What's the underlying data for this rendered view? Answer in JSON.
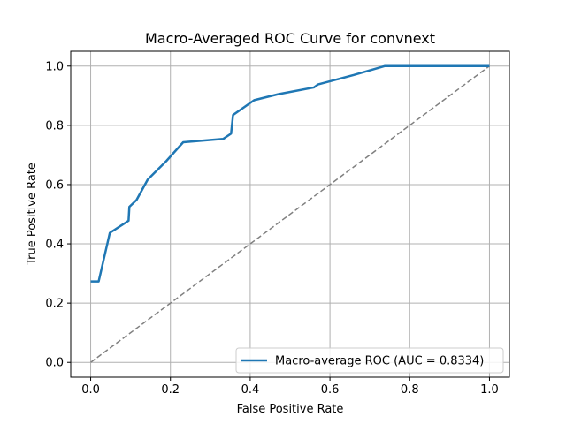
{
  "chart_data": {
    "type": "line",
    "title": "Macro-Averaged ROC Curve for convnext",
    "xlabel": "False Positive Rate",
    "ylabel": "True Positive Rate",
    "xlim": [
      -0.05,
      1.05
    ],
    "ylim": [
      -0.05,
      1.05
    ],
    "xticks": [
      0.0,
      0.2,
      0.4,
      0.6,
      0.8,
      1.0
    ],
    "yticks": [
      0.0,
      0.2,
      0.4,
      0.6,
      0.8,
      1.0
    ],
    "xtick_labels": [
      "0.0",
      "0.2",
      "0.4",
      "0.6",
      "0.8",
      "1.0"
    ],
    "ytick_labels": [
      "0.0",
      "0.2",
      "0.4",
      "0.6",
      "0.8",
      "1.0"
    ],
    "grid": true,
    "legend_position": "lower-right",
    "series": [
      {
        "name": "Macro-average ROC (AUC = 0.8334)",
        "color": "#1f77b4",
        "style": "solid",
        "x": [
          0.0,
          0.02,
          0.048,
          0.095,
          0.097,
          0.115,
          0.143,
          0.19,
          0.232,
          0.332,
          0.352,
          0.357,
          0.41,
          0.47,
          0.56,
          0.57,
          0.66,
          0.737,
          0.82,
          1.0
        ],
        "y": [
          0.273,
          0.273,
          0.437,
          0.478,
          0.525,
          0.548,
          0.617,
          0.68,
          0.743,
          0.754,
          0.772,
          0.835,
          0.885,
          0.905,
          0.928,
          0.938,
          0.97,
          1.0,
          1.0,
          1.0
        ]
      },
      {
        "color": "#808080",
        "style": "dashed",
        "x": [
          0.0,
          1.0
        ],
        "y": [
          0.0,
          1.0
        ]
      }
    ]
  }
}
